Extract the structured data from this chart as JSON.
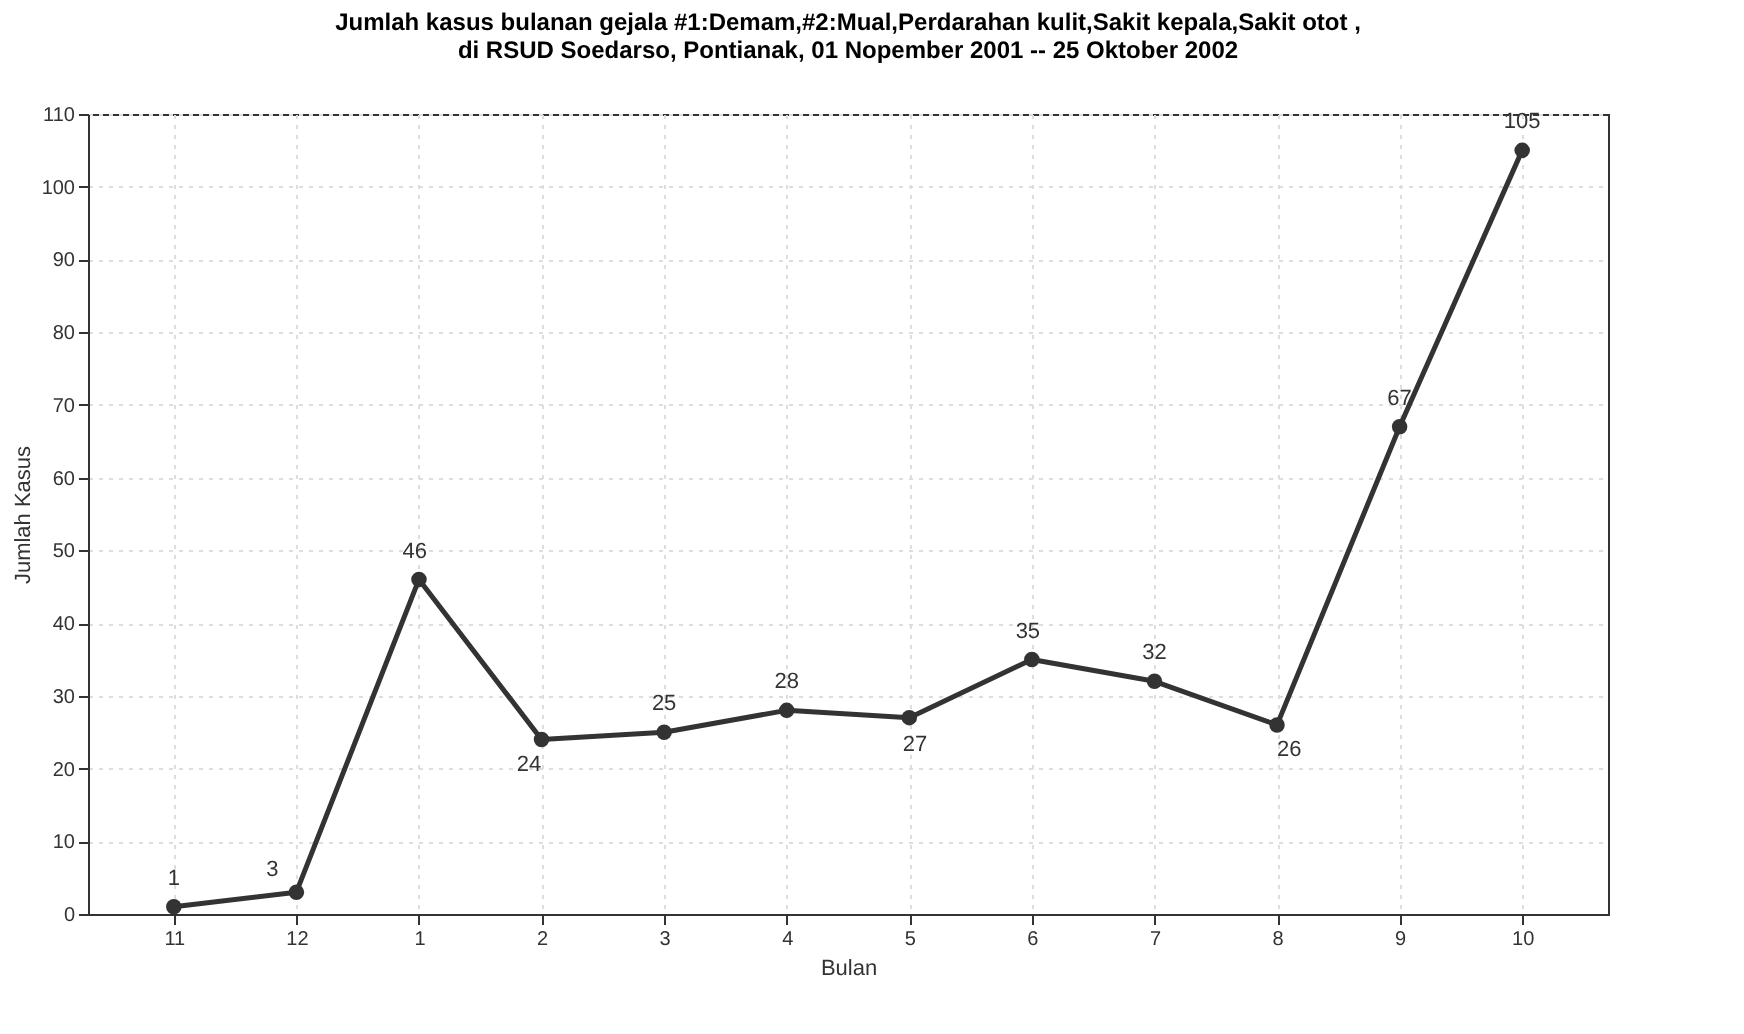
{
  "chart_data": {
    "type": "line",
    "title": [
      "Jumlah kasus bulanan gejala #1:Demam,#2:Mual,Perdarahan kulit,Sakit kepala,Sakit otot ,",
      "di RSUD Soedarso, Pontianak, 01 Nopember 2001 -- 25 Oktober 2002"
    ],
    "xlabel": "Bulan",
    "ylabel": "Jumlah Kasus",
    "categories": [
      "11",
      "12",
      "1",
      "2",
      "3",
      "4",
      "5",
      "6",
      "7",
      "8",
      "9",
      "10"
    ],
    "series": [
      {
        "color": "#333333",
        "values": [
          1,
          3,
          46,
          24,
          25,
          28,
          27,
          35,
          32,
          26,
          67,
          105
        ]
      }
    ],
    "ylim": [
      0,
      110
    ],
    "yticks": [
      0,
      10,
      20,
      30,
      40,
      50,
      60,
      70,
      80,
      90,
      100,
      110
    ],
    "grid": true,
    "marker": "circle",
    "line_style": "solid",
    "data_labels": true
  }
}
